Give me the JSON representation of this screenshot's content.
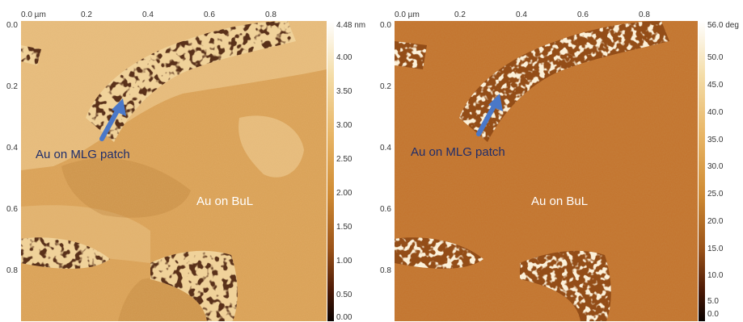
{
  "left": {
    "x_ticks": [
      "0.0 µm",
      "0.2",
      "0.4",
      "0.6",
      "0.8"
    ],
    "y_ticks": [
      "0.0",
      "0.2",
      "0.4",
      "0.6",
      "0.8"
    ],
    "scale_max": "4.48 nm",
    "scale_ticks": [
      "4.00",
      "3.50",
      "3.00",
      "2.50",
      "2.00",
      "1.50",
      "1.00",
      "0.50",
      "0.00"
    ],
    "annotation_patch": "Au on MLG patch",
    "annotation_bul": "Au on BuL",
    "colors": {
      "base": "#d9a055",
      "light": "#f0d29a",
      "dark": "#b87a35",
      "pit": "#2a0d05"
    }
  },
  "right": {
    "x_ticks": [
      "0.0 µm",
      "0.2",
      "0.4",
      "0.6",
      "0.8"
    ],
    "y_ticks": [
      "0.0",
      "0.2",
      "0.4",
      "0.6",
      "0.8"
    ],
    "scale_max": "56.0 deg",
    "scale_ticks": [
      "50.0",
      "45.0",
      "40.0",
      "35.0",
      "30.0",
      "25.0",
      "20.0",
      "15.0",
      "10.0",
      "5.0",
      "0.0"
    ],
    "annotation_patch": "Au on MLG patch",
    "annotation_bul": "Au on BuL",
    "colors": {
      "base": "#c4722b",
      "grain": "#f6e1b6",
      "dark": "#8b4513"
    }
  },
  "arrow_color": "#4a78c8",
  "text_dark_blue": "#1f2d6b"
}
